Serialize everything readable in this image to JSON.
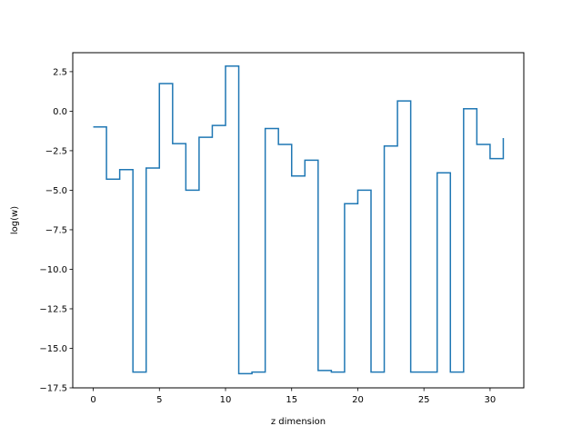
{
  "chart_data": {
    "type": "line",
    "step": "post",
    "title": "",
    "xlabel": "z dimension",
    "ylabel": "log(w)",
    "xlim": [
      -1.55,
      32.55
    ],
    "ylim": [
      -17.5,
      3.7
    ],
    "xticks": [
      0,
      5,
      10,
      15,
      20,
      25,
      30
    ],
    "xtick_labels": [
      "0",
      "5",
      "10",
      "15",
      "20",
      "25",
      "30"
    ],
    "yticks": [
      2.5,
      0.0,
      -2.5,
      -5.0,
      -7.5,
      -10.0,
      -12.5,
      -15.0,
      -17.5
    ],
    "ytick_labels": [
      "2.5",
      "0.0",
      "−2.5",
      "−5.0",
      "−7.5",
      "−10.0",
      "−12.5",
      "−15.0",
      "−17.5"
    ],
    "grid": false,
    "line_color": "#1f77b4",
    "series": [
      {
        "x": [
          0,
          1,
          2,
          3,
          4,
          5,
          6,
          7,
          8,
          9,
          10,
          11,
          12,
          13,
          14,
          15,
          16,
          17,
          18,
          19,
          20,
          21,
          22,
          23,
          24,
          25,
          26,
          27,
          28,
          29,
          30,
          31
        ],
        "values": [
          -1.0,
          -4.3,
          -3.7,
          -16.5,
          -3.6,
          1.75,
          -2.05,
          -5.0,
          -1.65,
          -0.9,
          2.85,
          -16.6,
          -16.5,
          -1.1,
          -2.1,
          -4.1,
          -3.1,
          -16.4,
          -16.5,
          -5.85,
          -5.0,
          -16.5,
          -2.2,
          0.65,
          -16.5,
          -16.5,
          -3.9,
          -16.5,
          0.15,
          -2.1,
          -3.0,
          -1.7
        ]
      }
    ]
  }
}
